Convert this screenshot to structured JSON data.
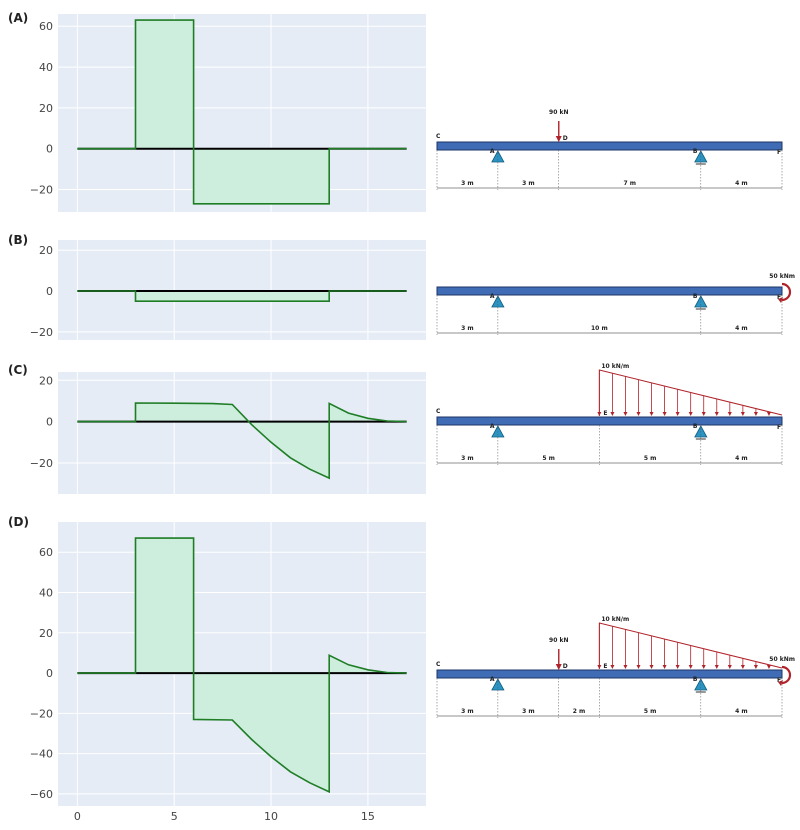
{
  "chart_data": [
    {
      "panel": "(A)",
      "type": "area",
      "yticks": [
        -20,
        0,
        20,
        40,
        60
      ],
      "ylim": [
        -31,
        66
      ],
      "xlim": [
        -1,
        18
      ],
      "x": [
        0,
        3,
        3,
        6,
        6,
        13,
        13,
        17
      ],
      "y": [
        0,
        0,
        63,
        63,
        -27,
        -27,
        0,
        0
      ],
      "beam": {
        "nodes": [
          {
            "name": "C",
            "x": 0
          },
          {
            "name": "A",
            "x": 3,
            "support": "pin"
          },
          {
            "name": "D",
            "x": 6
          },
          {
            "name": "B",
            "x": 13,
            "support": "roller"
          },
          {
            "name": "F",
            "x": 17
          }
        ],
        "loads": [
          {
            "kind": "point",
            "x": 6,
            "label": "90 kN"
          }
        ],
        "dims": [
          {
            "from": 0,
            "to": 3,
            "label": "3 m"
          },
          {
            "from": 3,
            "to": 6,
            "label": "3 m"
          },
          {
            "from": 6,
            "to": 13,
            "label": "7 m"
          },
          {
            "from": 13,
            "to": 17,
            "label": "4 m"
          }
        ]
      }
    },
    {
      "panel": "(B)",
      "type": "area",
      "yticks": [
        -20,
        0,
        20
      ],
      "ylim": [
        -24,
        25
      ],
      "xlim": [
        -1,
        18
      ],
      "x": [
        0,
        3,
        3,
        13,
        13,
        17
      ],
      "y": [
        0,
        0,
        -5,
        -5,
        0,
        0
      ],
      "beam": {
        "nodes": [
          {
            "name": "A",
            "x": 3,
            "support": "pin"
          },
          {
            "name": "B",
            "x": 13,
            "support": "roller"
          },
          {
            "name": "F",
            "x": 17
          }
        ],
        "loads": [
          {
            "kind": "moment",
            "x": 17,
            "label": "50 kNm"
          }
        ],
        "dims": [
          {
            "from": 0,
            "to": 3,
            "label": "3 m"
          },
          {
            "from": 3,
            "to": 13,
            "label": "10 m"
          },
          {
            "from": 13,
            "to": 17,
            "label": "4 m"
          }
        ]
      }
    },
    {
      "panel": "(C)",
      "type": "area",
      "yticks": [
        -20,
        0,
        20
      ],
      "ylim": [
        -35,
        24
      ],
      "xlim": [
        -1,
        18
      ],
      "x": [
        0,
        3,
        3,
        5,
        7,
        8,
        9,
        10,
        11,
        12,
        13,
        13,
        14,
        15,
        16,
        17
      ],
      "y": [
        0,
        0,
        9,
        8.9,
        8.7,
        8.3,
        -1.5,
        -10,
        -17.5,
        -23,
        -27.3,
        8.8,
        4.1,
        1.6,
        0.3,
        0
      ],
      "beam": {
        "nodes": [
          {
            "name": "C",
            "x": 0
          },
          {
            "name": "A",
            "x": 3,
            "support": "pin"
          },
          {
            "name": "E",
            "x": 8
          },
          {
            "name": "B",
            "x": 13,
            "support": "roller"
          },
          {
            "name": "F",
            "x": 17
          }
        ],
        "loads": [
          {
            "kind": "distributed",
            "from": 8,
            "to": 17,
            "label": "10 kN/m"
          }
        ],
        "dims": [
          {
            "from": 0,
            "to": 3,
            "label": "3 m"
          },
          {
            "from": 3,
            "to": 8,
            "label": "5 m"
          },
          {
            "from": 8,
            "to": 13,
            "label": "5 m"
          },
          {
            "from": 13,
            "to": 17,
            "label": "4 m"
          }
        ]
      }
    },
    {
      "panel": "(D)",
      "type": "area",
      "xticks": [
        0,
        5,
        10,
        15
      ],
      "yticks": [
        -60,
        -40,
        -20,
        0,
        20,
        40,
        60
      ],
      "ylim": [
        -66,
        75
      ],
      "xlim": [
        -1,
        18
      ],
      "x": [
        0,
        3,
        3,
        6,
        6,
        8,
        9,
        10,
        11,
        12,
        13,
        13,
        14,
        15,
        16,
        17
      ],
      "y": [
        0,
        0,
        67,
        67,
        -23,
        -23.3,
        -33,
        -41.5,
        -49,
        -54.5,
        -59,
        8.8,
        4.1,
        1.6,
        0.3,
        0
      ],
      "beam": {
        "nodes": [
          {
            "name": "C",
            "x": 0
          },
          {
            "name": "A",
            "x": 3,
            "support": "pin"
          },
          {
            "name": "D",
            "x": 6
          },
          {
            "name": "E",
            "x": 8
          },
          {
            "name": "B",
            "x": 13,
            "support": "roller"
          },
          {
            "name": "F",
            "x": 17
          }
        ],
        "loads": [
          {
            "kind": "point",
            "x": 6,
            "label": "90 kN"
          },
          {
            "kind": "distributed",
            "from": 8,
            "to": 17,
            "label": "10 kN/m"
          },
          {
            "kind": "moment",
            "x": 17,
            "label": "50 kNm"
          }
        ],
        "dims": [
          {
            "from": 0,
            "to": 3,
            "label": "3 m"
          },
          {
            "from": 3,
            "to": 6,
            "label": "3 m"
          },
          {
            "from": 6,
            "to": 8,
            "label": "2 m"
          },
          {
            "from": 8,
            "to": 13,
            "label": "5 m"
          },
          {
            "from": 13,
            "to": 17,
            "label": "4 m"
          }
        ]
      }
    }
  ],
  "colors": {
    "plot_bg": "#e5ecf6",
    "grid": "#ffffff",
    "fill": "#cdeedd",
    "line": "#1f7d26",
    "axis": "#000000",
    "beam": "#3f6cb5",
    "beam_edge": "#1d3566",
    "support": "#2a95c4",
    "load": "#b0232a"
  }
}
